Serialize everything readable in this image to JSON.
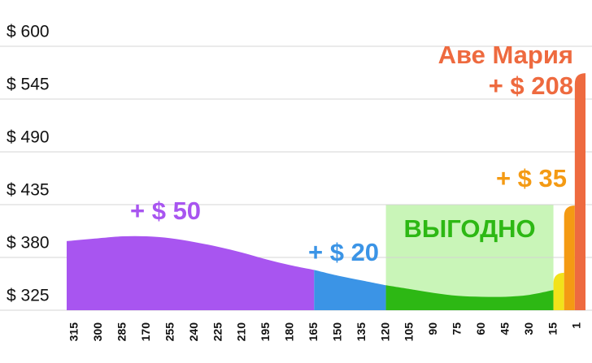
{
  "chart_data": {
    "type": "area",
    "categories": [
      "315",
      "300",
      "285",
      "170",
      "255",
      "240",
      "225",
      "210",
      "195",
      "180",
      "165",
      "150",
      "135",
      "120",
      "105",
      "90",
      "75",
      "60",
      "45",
      "30",
      "15",
      "1"
    ],
    "series": [
      {
        "color": "#a855f0",
        "values": [
          397,
          400,
          402,
          402,
          400,
          396,
          391,
          385,
          378,
          372,
          367,
          null,
          null,
          null,
          null,
          null,
          null,
          null,
          null,
          null,
          null,
          null
        ]
      },
      {
        "color": "#3b94e6",
        "values": [
          null,
          null,
          null,
          null,
          null,
          null,
          null,
          null,
          null,
          null,
          367,
          361,
          356,
          351,
          null,
          null,
          null,
          null,
          null,
          null,
          null,
          null
        ]
      },
      {
        "color": "#2db814",
        "values": [
          null,
          null,
          null,
          null,
          null,
          null,
          null,
          null,
          null,
          null,
          null,
          null,
          null,
          351,
          347,
          343,
          340,
          339,
          339,
          341,
          346,
          null
        ]
      }
    ],
    "end_bars": [
      {
        "color": "#f2e21a",
        "value": 364
      },
      {
        "color": "#f49a13",
        "value": 434
      },
      {
        "color": "#ee6a3f",
        "value": 572
      }
    ],
    "ylim": [
      325,
      600
    ],
    "yticks": [
      {
        "value": 325,
        "label": "$ 325"
      },
      {
        "value": 380,
        "label": "$ 380"
      },
      {
        "value": 435,
        "label": "$ 435"
      },
      {
        "value": 490,
        "label": "$ 490"
      },
      {
        "value": 545,
        "label": "$ 545"
      },
      {
        "value": 600,
        "label": "$ 600"
      }
    ],
    "grid": true,
    "highlight": {
      "label": "ВЫГОДНО",
      "ylim": [
        325,
        435
      ],
      "color": "#c9f5b8",
      "text_color": "#2db814"
    },
    "annotations": [
      {
        "text": "+ $ 50",
        "color": "#a855f0"
      },
      {
        "text": "+ $ 20",
        "color": "#3b94e6"
      },
      {
        "text": "+ $ 35",
        "color": "#f49a13"
      },
      {
        "text": "Аве Мария",
        "color": "#ee6a3f"
      },
      {
        "text": "+ $ 208",
        "color": "#ee6a3f"
      }
    ]
  }
}
